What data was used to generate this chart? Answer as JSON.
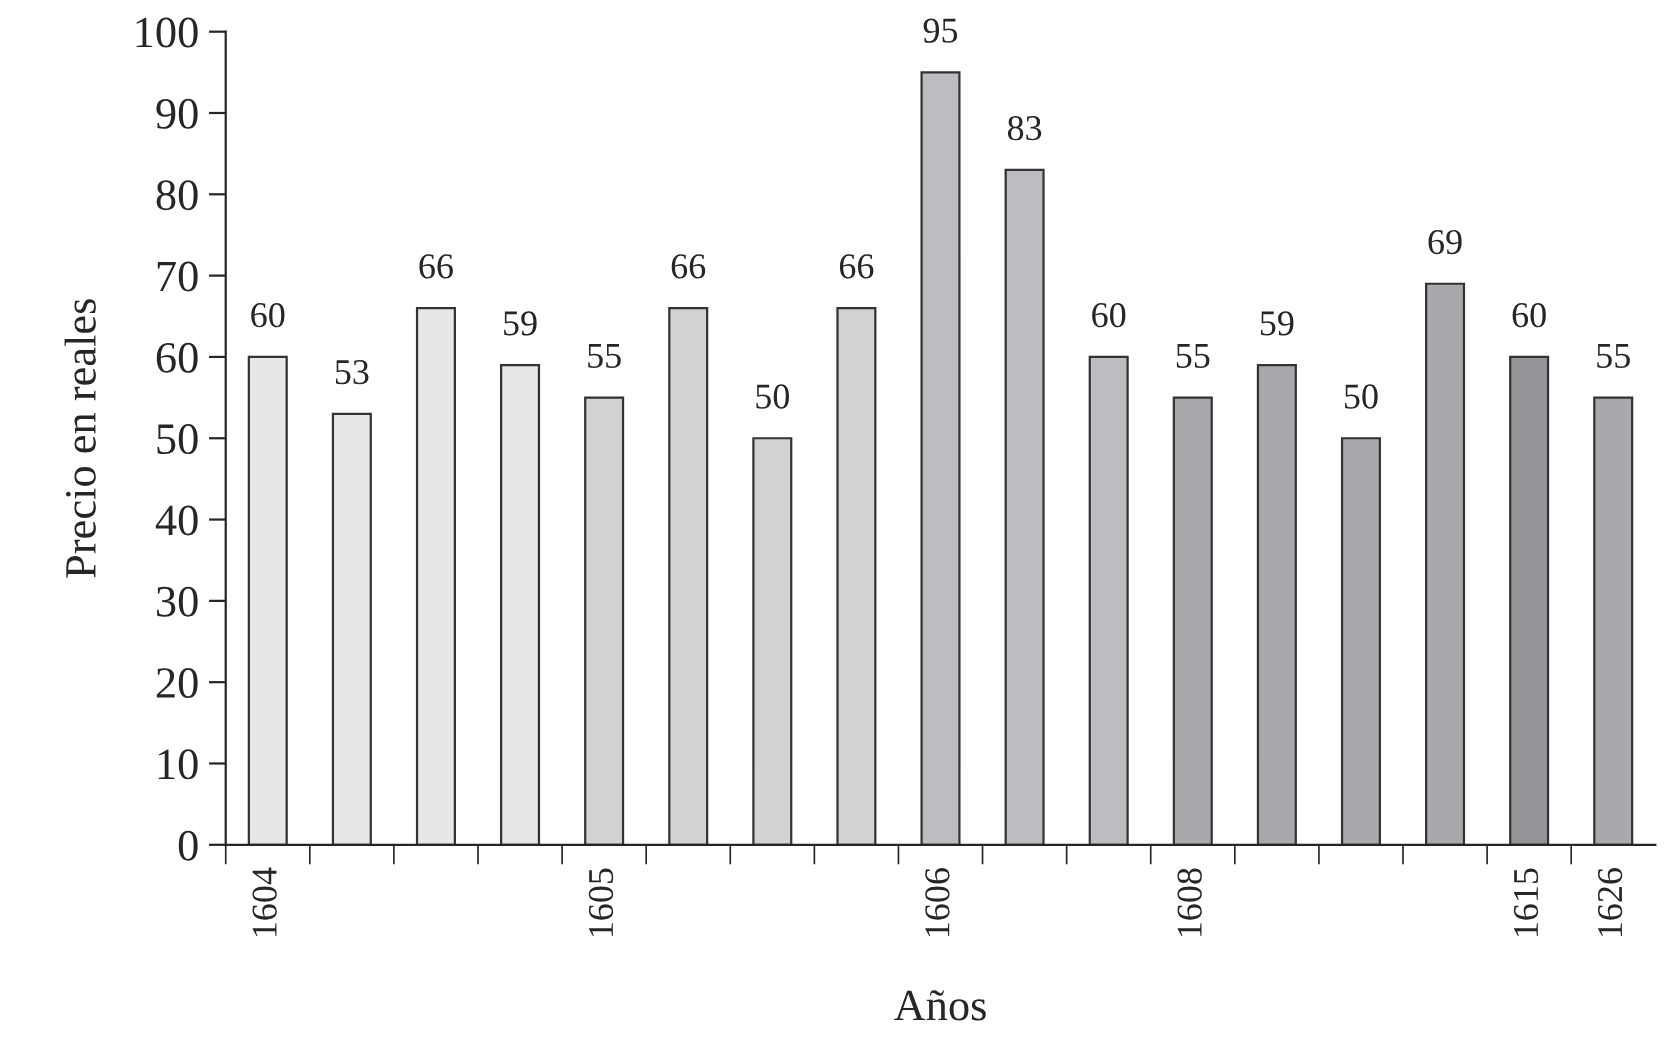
{
  "chart_data": {
    "type": "bar",
    "xlabel": "Años",
    "ylabel": "Precio en reales",
    "categories": [
      "1604",
      null,
      null,
      null,
      "1605",
      null,
      null,
      null,
      "1606",
      null,
      null,
      "1608",
      null,
      null,
      null,
      "1615",
      "1626"
    ],
    "values": [
      60,
      53,
      66,
      59,
      55,
      66,
      50,
      66,
      95,
      83,
      60,
      55,
      59,
      50,
      69,
      60,
      55
    ],
    "colors": [
      "#e6e7e8",
      "#e6e7e8",
      "#e6e7e8",
      "#e6e7e8",
      "#d1d2d4",
      "#d1d2d4",
      "#d1d2d4",
      "#d1d2d4",
      "#bcbdc0",
      "#bcbdc0",
      "#bcbdc0",
      "#a7a9ac",
      "#a7a9ac",
      "#a7a9ac",
      "#a7a9ac",
      "#939598",
      "#a7a9ac"
    ],
    "ylim": [
      0,
      100
    ],
    "yticks": [
      0,
      10,
      20,
      30,
      40,
      50,
      60,
      70,
      80,
      90,
      100
    ],
    "data_labels": true,
    "grid": false,
    "legend": false
  }
}
